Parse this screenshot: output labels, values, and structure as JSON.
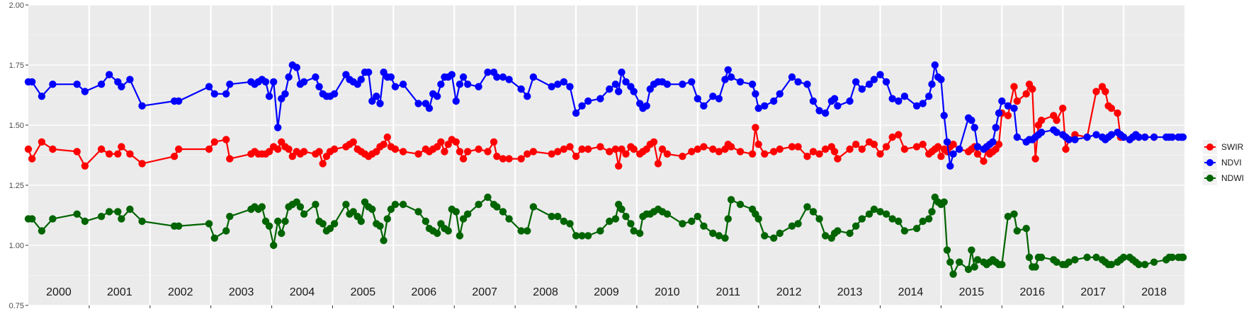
{
  "chart_data": {
    "type": "line",
    "title": "",
    "xlabel": "",
    "ylabel": "",
    "ylim": [
      0.75,
      2.0
    ],
    "y_ticks": [
      "0.75",
      "1.00",
      "1.25",
      "1.50",
      "1.75",
      "2.00"
    ],
    "y_tick_values": [
      0.75,
      1.0,
      1.25,
      1.5,
      1.75,
      2.0
    ],
    "xlim": [
      2000.0,
      2019.0
    ],
    "grid": true,
    "legend_position": "right",
    "year_panels": [
      "2000",
      "2001",
      "2002",
      "2003",
      "2004",
      "2005",
      "2006",
      "2007",
      "2008",
      "2009",
      "2010",
      "2011",
      "2012",
      "2013",
      "2014",
      "2015",
      "2016",
      "2017",
      "2018"
    ],
    "series": [
      {
        "name": "SWIR",
        "color": "#ff0000",
        "x": [
          2000.0,
          2000.06,
          2000.22,
          2000.4,
          2000.8,
          2000.93,
          2001.2,
          2001.33,
          2001.47,
          2001.53,
          2001.67,
          2001.87,
          2002.4,
          2002.47,
          2002.97,
          2003.06,
          2003.25,
          2003.31,
          2003.66,
          2003.72,
          2003.78,
          2003.84,
          2003.9,
          2003.96,
          2004.03,
          2004.1,
          2004.16,
          2004.22,
          2004.28,
          2004.34,
          2004.41,
          2004.47,
          2004.53,
          2004.72,
          2004.78,
          2004.84,
          2004.9,
          2004.96,
          2005.03,
          2005.22,
          2005.28,
          2005.34,
          2005.41,
          2005.47,
          2005.53,
          2005.59,
          2005.65,
          2005.72,
          2005.78,
          2005.84,
          2005.9,
          2005.96,
          2006.03,
          2006.16,
          2006.41,
          2006.53,
          2006.59,
          2006.65,
          2006.72,
          2006.78,
          2006.84,
          2006.9,
          2006.96,
          2007.03,
          2007.09,
          2007.15,
          2007.22,
          2007.4,
          2007.55,
          2007.65,
          2007.7,
          2007.8,
          2007.9,
          2008.1,
          2008.2,
          2008.3,
          2008.6,
          2008.7,
          2008.8,
          2008.9,
          2009.0,
          2009.1,
          2009.2,
          2009.4,
          2009.55,
          2009.65,
          2009.7,
          2009.75,
          2009.82,
          2009.9,
          2009.95,
          2010.05,
          2010.1,
          2010.16,
          2010.22,
          2010.28,
          2010.35,
          2010.42,
          2010.5,
          2010.75,
          2010.9,
          2011.0,
          2011.1,
          2011.25,
          2011.35,
          2011.45,
          2011.5,
          2011.55,
          2011.7,
          2011.9,
          2011.95,
          2012.0,
          2012.1,
          2012.25,
          2012.35,
          2012.55,
          2012.65,
          2012.8,
          2012.9,
          2013.0,
          2013.1,
          2013.2,
          2013.25,
          2013.3,
          2013.5,
          2013.6,
          2013.7,
          2013.82,
          2013.9,
          2014.0,
          2014.1,
          2014.2,
          2014.3,
          2014.4,
          2014.6,
          2014.7,
          2014.8,
          2014.85,
          2014.9,
          2014.95,
          2015.0,
          2015.05,
          2015.1,
          2015.15,
          2015.2,
          2015.3,
          2015.45,
          2015.5,
          2015.55,
          2015.6,
          2015.7,
          2015.75,
          2015.8,
          2015.85,
          2015.9,
          2015.95,
          2016.0,
          2016.1,
          2016.2,
          2016.25,
          2016.4,
          2016.45,
          2016.5,
          2016.55,
          2016.6,
          2016.65,
          2016.85,
          2016.9,
          2017.0,
          2017.05,
          2017.1,
          2017.2,
          2017.4,
          2017.55,
          2017.65,
          2017.7,
          2017.75,
          2017.8,
          2017.9,
          2017.95,
          2018.0,
          2018.1,
          2018.15,
          2018.2,
          2018.25,
          2018.35,
          2018.5,
          2018.7,
          2018.75,
          2018.8,
          2018.9,
          2018.95,
          2019.0,
          2019.05
        ]
      },
      {
        "name": "NDVI",
        "color": "#0000ff",
        "x": [
          2000.0,
          2000.06,
          2000.22,
          2000.4,
          2000.8,
          2000.93,
          2001.2,
          2001.33,
          2001.47,
          2001.53,
          2001.67,
          2001.87,
          2002.4,
          2002.47,
          2002.97,
          2003.06,
          2003.25,
          2003.31,
          2003.66,
          2003.72,
          2003.78,
          2003.84,
          2003.9,
          2003.96,
          2004.03,
          2004.1,
          2004.16,
          2004.22,
          2004.28,
          2004.34,
          2004.41,
          2004.47,
          2004.53,
          2004.72,
          2004.78,
          2004.84,
          2004.9,
          2004.96,
          2005.03,
          2005.22,
          2005.28,
          2005.34,
          2005.41,
          2005.47,
          2005.53,
          2005.59,
          2005.65,
          2005.72,
          2005.78,
          2005.84,
          2005.9,
          2005.96,
          2006.03,
          2006.16,
          2006.41,
          2006.53,
          2006.59,
          2006.65,
          2006.72,
          2006.78,
          2006.84,
          2006.9,
          2006.96,
          2007.03,
          2007.09,
          2007.15,
          2007.22,
          2007.4,
          2007.55,
          2007.65,
          2007.7,
          2007.8,
          2007.9,
          2008.1,
          2008.2,
          2008.3,
          2008.6,
          2008.7,
          2008.8,
          2008.9,
          2009.0,
          2009.1,
          2009.2,
          2009.4,
          2009.55,
          2009.65,
          2009.7,
          2009.75,
          2009.82,
          2009.9,
          2009.95,
          2010.05,
          2010.1,
          2010.16,
          2010.22,
          2010.28,
          2010.35,
          2010.42,
          2010.5,
          2010.75,
          2010.9,
          2011.0,
          2011.1,
          2011.25,
          2011.35,
          2011.45,
          2011.5,
          2011.55,
          2011.7,
          2011.9,
          2011.95,
          2012.0,
          2012.1,
          2012.25,
          2012.35,
          2012.55,
          2012.65,
          2012.8,
          2012.9,
          2013.0,
          2013.1,
          2013.2,
          2013.25,
          2013.3,
          2013.5,
          2013.6,
          2013.7,
          2013.82,
          2013.9,
          2014.0,
          2014.1,
          2014.2,
          2014.3,
          2014.4,
          2014.6,
          2014.7,
          2014.8,
          2014.85,
          2014.9,
          2014.95,
          2015.0,
          2015.05,
          2015.1,
          2015.15,
          2015.2,
          2015.3,
          2015.45,
          2015.5,
          2015.55,
          2015.6,
          2015.7,
          2015.75,
          2015.8,
          2015.85,
          2015.9,
          2015.95,
          2016.0,
          2016.1,
          2016.2,
          2016.25,
          2016.4,
          2016.45,
          2016.5,
          2016.55,
          2016.6,
          2016.65,
          2016.85,
          2016.9,
          2017.0,
          2017.05,
          2017.1,
          2017.2,
          2017.4,
          2017.55,
          2017.65,
          2017.7,
          2017.75,
          2017.8,
          2017.9,
          2017.95,
          2018.0,
          2018.1,
          2018.15,
          2018.2,
          2018.25,
          2018.35,
          2018.5,
          2018.7,
          2018.75,
          2018.8,
          2018.9,
          2018.95,
          2019.0,
          2019.05
        ]
      },
      {
        "name": "NDWI",
        "color": "#006400",
        "x": [
          2000.0,
          2000.06,
          2000.22,
          2000.4,
          2000.8,
          2000.93,
          2001.2,
          2001.33,
          2001.47,
          2001.53,
          2001.67,
          2001.87,
          2002.4,
          2002.47,
          2002.97,
          2003.06,
          2003.25,
          2003.31,
          2003.66,
          2003.72,
          2003.78,
          2003.84,
          2003.9,
          2003.96,
          2004.03,
          2004.1,
          2004.16,
          2004.22,
          2004.28,
          2004.34,
          2004.41,
          2004.47,
          2004.53,
          2004.72,
          2004.78,
          2004.84,
          2004.9,
          2004.96,
          2005.03,
          2005.22,
          2005.28,
          2005.34,
          2005.41,
          2005.47,
          2005.53,
          2005.59,
          2005.65,
          2005.72,
          2005.78,
          2005.84,
          2005.9,
          2005.96,
          2006.03,
          2006.16,
          2006.41,
          2006.53,
          2006.59,
          2006.65,
          2006.72,
          2006.78,
          2006.84,
          2006.9,
          2006.96,
          2007.03,
          2007.09,
          2007.15,
          2007.22,
          2007.4,
          2007.55,
          2007.65,
          2007.7,
          2007.8,
          2007.9,
          2008.1,
          2008.2,
          2008.3,
          2008.6,
          2008.7,
          2008.8,
          2008.9,
          2009.0,
          2009.1,
          2009.2,
          2009.4,
          2009.55,
          2009.65,
          2009.7,
          2009.75,
          2009.82,
          2009.9,
          2009.95,
          2010.05,
          2010.1,
          2010.16,
          2010.22,
          2010.28,
          2010.35,
          2010.42,
          2010.5,
          2010.75,
          2010.9,
          2011.0,
          2011.1,
          2011.25,
          2011.35,
          2011.45,
          2011.5,
          2011.55,
          2011.7,
          2011.9,
          2011.95,
          2012.0,
          2012.1,
          2012.25,
          2012.35,
          2012.55,
          2012.65,
          2012.8,
          2012.9,
          2013.0,
          2013.1,
          2013.2,
          2013.25,
          2013.3,
          2013.5,
          2013.6,
          2013.7,
          2013.82,
          2013.9,
          2014.0,
          2014.1,
          2014.2,
          2014.3,
          2014.4,
          2014.6,
          2014.7,
          2014.8,
          2014.85,
          2014.9,
          2014.95,
          2015.0,
          2015.05,
          2015.1,
          2015.15,
          2015.2,
          2015.3,
          2015.45,
          2015.5,
          2015.55,
          2015.6,
          2015.7,
          2015.75,
          2015.8,
          2015.85,
          2015.9,
          2015.95,
          2016.0,
          2016.1,
          2016.2,
          2016.25,
          2016.4,
          2016.45,
          2016.5,
          2016.55,
          2016.6,
          2016.65,
          2016.85,
          2016.9,
          2017.0,
          2017.05,
          2017.1,
          2017.2,
          2017.4,
          2017.55,
          2017.65,
          2017.7,
          2017.75,
          2017.8,
          2017.9,
          2017.95,
          2018.0,
          2018.1,
          2018.15,
          2018.2,
          2018.25,
          2018.35,
          2018.5,
          2018.7,
          2018.75,
          2018.8,
          2018.9,
          2018.95,
          2019.0,
          2019.05
        ]
      }
    ],
    "values": {
      "SWIR": [
        1.4,
        1.36,
        1.43,
        1.4,
        1.39,
        1.33,
        1.4,
        1.38,
        1.38,
        1.41,
        1.38,
        1.34,
        1.37,
        1.4,
        1.4,
        1.43,
        1.44,
        1.36,
        1.38,
        1.39,
        1.38,
        1.38,
        1.38,
        1.39,
        1.41,
        1.4,
        1.43,
        1.41,
        1.4,
        1.37,
        1.39,
        1.38,
        1.39,
        1.38,
        1.39,
        1.34,
        1.37,
        1.39,
        1.4,
        1.41,
        1.42,
        1.43,
        1.4,
        1.39,
        1.38,
        1.37,
        1.38,
        1.39,
        1.41,
        1.42,
        1.45,
        1.41,
        1.4,
        1.39,
        1.38,
        1.4,
        1.39,
        1.4,
        1.41,
        1.43,
        1.39,
        1.42,
        1.44,
        1.43,
        1.39,
        1.36,
        1.39,
        1.4,
        1.39,
        1.43,
        1.37,
        1.36,
        1.36,
        1.36,
        1.38,
        1.39,
        1.38,
        1.39,
        1.4,
        1.41,
        1.37,
        1.4,
        1.4,
        1.41,
        1.39,
        1.4,
        1.33,
        1.4,
        1.38,
        1.41,
        1.4,
        1.38,
        1.39,
        1.4,
        1.42,
        1.43,
        1.34,
        1.4,
        1.38,
        1.37,
        1.39,
        1.4,
        1.41,
        1.4,
        1.39,
        1.4,
        1.42,
        1.41,
        1.39,
        1.38,
        1.49,
        1.42,
        1.38,
        1.39,
        1.4,
        1.41,
        1.41,
        1.37,
        1.39,
        1.38,
        1.4,
        1.41,
        1.39,
        1.36,
        1.4,
        1.42,
        1.4,
        1.43,
        1.42,
        1.38,
        1.41,
        1.45,
        1.46,
        1.4,
        1.41,
        1.42,
        1.38,
        1.39,
        1.4,
        1.41,
        1.37,
        1.4,
        1.39,
        1.41,
        1.42,
        1.4,
        1.39,
        1.4,
        1.41,
        1.38,
        1.35,
        1.4,
        1.38,
        1.39,
        1.4,
        1.42,
        1.55,
        1.54,
        1.66,
        1.6,
        1.63,
        1.67,
        1.65,
        1.36,
        1.5,
        1.52,
        1.54,
        1.52,
        1.57,
        1.4,
        1.44,
        1.46,
        1.45,
        1.64,
        1.66,
        1.64,
        1.58,
        1.57,
        1.55,
        1.45,
        1.45,
        1.44,
        1.45,
        1.46,
        1.45,
        1.45,
        1.45
      ],
      "NDVI": [
        1.68,
        1.68,
        1.62,
        1.67,
        1.67,
        1.64,
        1.67,
        1.71,
        1.68,
        1.66,
        1.69,
        1.58,
        1.6,
        1.6,
        1.66,
        1.63,
        1.63,
        1.67,
        1.68,
        1.67,
        1.68,
        1.69,
        1.68,
        1.62,
        1.68,
        1.49,
        1.61,
        1.63,
        1.7,
        1.75,
        1.74,
        1.67,
        1.68,
        1.7,
        1.66,
        1.63,
        1.62,
        1.62,
        1.63,
        1.71,
        1.69,
        1.68,
        1.67,
        1.69,
        1.72,
        1.72,
        1.6,
        1.62,
        1.59,
        1.72,
        1.7,
        1.7,
        1.66,
        1.67,
        1.59,
        1.59,
        1.57,
        1.63,
        1.62,
        1.67,
        1.7,
        1.7,
        1.71,
        1.6,
        1.67,
        1.7,
        1.67,
        1.66,
        1.72,
        1.72,
        1.7,
        1.7,
        1.69,
        1.65,
        1.62,
        1.7,
        1.66,
        1.67,
        1.68,
        1.66,
        1.55,
        1.58,
        1.6,
        1.61,
        1.65,
        1.67,
        1.64,
        1.72,
        1.68,
        1.66,
        1.64,
        1.59,
        1.57,
        1.58,
        1.65,
        1.67,
        1.68,
        1.68,
        1.67,
        1.67,
        1.68,
        1.61,
        1.58,
        1.62,
        1.61,
        1.69,
        1.73,
        1.7,
        1.68,
        1.67,
        1.63,
        1.57,
        1.58,
        1.6,
        1.63,
        1.7,
        1.68,
        1.67,
        1.6,
        1.56,
        1.55,
        1.6,
        1.61,
        1.58,
        1.6,
        1.68,
        1.65,
        1.67,
        1.69,
        1.71,
        1.68,
        1.61,
        1.6,
        1.62,
        1.58,
        1.59,
        1.62,
        1.67,
        1.75,
        1.7,
        1.69,
        1.54,
        1.43,
        1.33,
        1.38,
        1.4,
        1.53,
        1.52,
        1.49,
        1.41,
        1.4,
        1.41,
        1.42,
        1.43,
        1.49,
        1.55,
        1.6,
        1.58,
        1.57,
        1.45,
        1.43,
        1.44,
        1.44,
        1.45,
        1.46,
        1.47,
        1.48,
        1.47,
        1.46,
        1.45,
        1.44,
        1.44,
        1.45,
        1.46,
        1.45,
        1.44,
        1.45,
        1.46,
        1.47,
        1.46,
        1.45,
        1.44,
        1.45,
        1.46,
        1.45,
        1.45,
        1.45,
        1.45,
        1.45,
        1.45,
        1.45,
        1.45,
        1.45
      ],
      "NDWI": [
        1.11,
        1.11,
        1.06,
        1.11,
        1.13,
        1.1,
        1.12,
        1.14,
        1.14,
        1.11,
        1.15,
        1.1,
        1.08,
        1.08,
        1.09,
        1.03,
        1.06,
        1.12,
        1.15,
        1.16,
        1.15,
        1.16,
        1.1,
        1.08,
        1.0,
        1.1,
        1.05,
        1.1,
        1.16,
        1.17,
        1.18,
        1.16,
        1.13,
        1.17,
        1.1,
        1.09,
        1.06,
        1.07,
        1.09,
        1.17,
        1.13,
        1.14,
        1.12,
        1.1,
        1.18,
        1.16,
        1.15,
        1.09,
        1.08,
        1.02,
        1.11,
        1.15,
        1.17,
        1.17,
        1.14,
        1.1,
        1.07,
        1.06,
        1.05,
        1.09,
        1.07,
        1.06,
        1.15,
        1.14,
        1.04,
        1.11,
        1.13,
        1.17,
        1.2,
        1.17,
        1.16,
        1.14,
        1.11,
        1.06,
        1.06,
        1.16,
        1.12,
        1.12,
        1.1,
        1.09,
        1.04,
        1.04,
        1.04,
        1.06,
        1.1,
        1.11,
        1.17,
        1.15,
        1.12,
        1.09,
        1.06,
        1.05,
        1.12,
        1.13,
        1.13,
        1.14,
        1.15,
        1.14,
        1.13,
        1.09,
        1.1,
        1.12,
        1.08,
        1.05,
        1.04,
        1.03,
        1.11,
        1.19,
        1.17,
        1.15,
        1.13,
        1.11,
        1.04,
        1.03,
        1.05,
        1.08,
        1.09,
        1.16,
        1.14,
        1.11,
        1.04,
        1.03,
        1.05,
        1.06,
        1.05,
        1.08,
        1.11,
        1.13,
        1.15,
        1.14,
        1.13,
        1.11,
        1.1,
        1.06,
        1.07,
        1.1,
        1.11,
        1.14,
        1.2,
        1.18,
        1.17,
        1.18,
        0.98,
        0.93,
        0.88,
        0.93,
        0.9,
        0.98,
        0.91,
        0.94,
        0.93,
        0.92,
        0.93,
        0.94,
        0.93,
        0.92,
        0.92,
        1.12,
        1.13,
        1.06,
        1.07,
        0.95,
        0.91,
        0.91,
        0.95,
        0.95,
        0.94,
        0.93,
        0.92,
        0.92,
        0.93,
        0.94,
        0.95,
        0.95,
        0.94,
        0.93,
        0.92,
        0.92,
        0.93,
        0.94,
        0.95,
        0.95,
        0.94,
        0.93,
        0.92,
        0.92,
        0.93,
        0.94,
        0.95,
        0.95,
        0.95,
        0.95,
        0.95,
        0.95,
        0.95
      ]
    }
  }
}
